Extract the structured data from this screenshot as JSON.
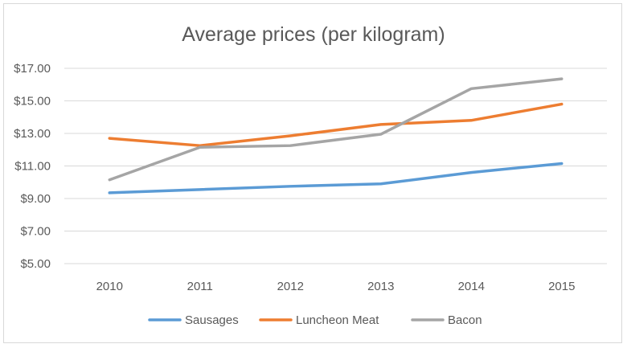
{
  "chart_data": {
    "type": "line",
    "title": "Average prices (per kilogram)",
    "xlabel": "",
    "ylabel": "",
    "categories": [
      "2010",
      "2011",
      "2012",
      "2013",
      "2014",
      "2015"
    ],
    "ylim": [
      5,
      17
    ],
    "yticks": [
      5,
      7,
      9,
      11,
      13,
      15,
      17
    ],
    "ytick_labels": [
      "$5.00",
      "$7.00",
      "$9.00",
      "$11.00",
      "$13.00",
      "$15.00",
      "$17.00"
    ],
    "grid": true,
    "legend_position": "bottom",
    "series": [
      {
        "name": "Sausages",
        "color": "#5b9bd5",
        "values": [
          9.35,
          9.55,
          9.75,
          9.9,
          10.6,
          11.15
        ]
      },
      {
        "name": "Luncheon Meat",
        "color": "#ed7d31",
        "values": [
          12.7,
          12.25,
          12.85,
          13.55,
          13.8,
          14.8
        ]
      },
      {
        "name": "Bacon",
        "color": "#a5a5a5",
        "values": [
          10.15,
          12.15,
          12.25,
          12.95,
          15.75,
          16.35
        ]
      }
    ]
  }
}
